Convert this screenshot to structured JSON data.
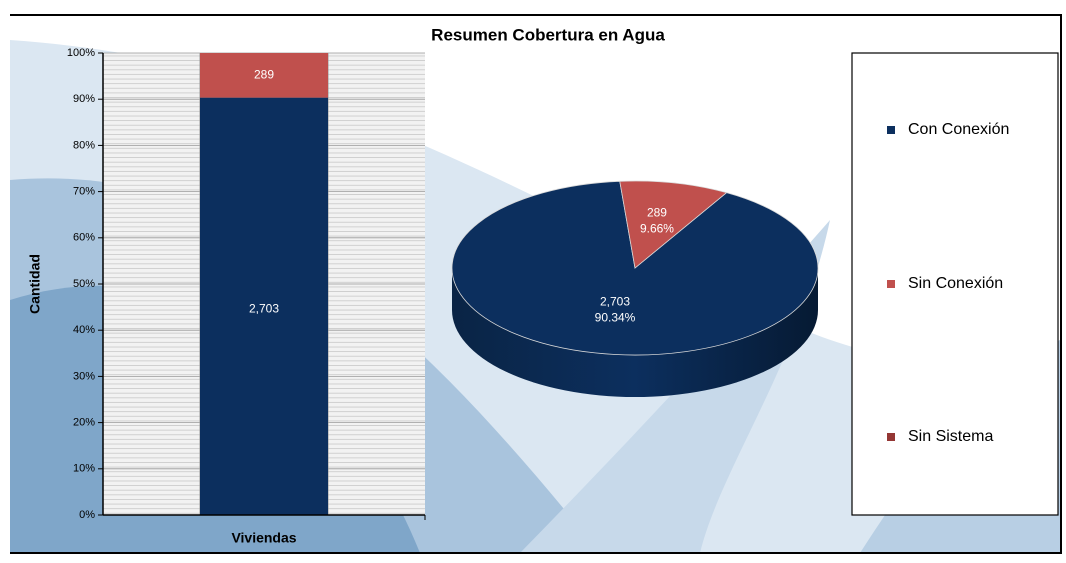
{
  "chart_data": [
    {
      "type": "bar",
      "stacked": "percent",
      "title": "Resumen Cobertura en Agua",
      "y_label": "Cantidad",
      "categories": [
        "Viviendas"
      ],
      "series": [
        {
          "name": "Con Conexión",
          "color": "#0c2f5e",
          "values": [
            2703
          ],
          "value_labels": [
            "2,703"
          ]
        },
        {
          "name": "Sin Conexión",
          "color": "#c0504d",
          "values": [
            289
          ],
          "value_labels": [
            "289"
          ]
        },
        {
          "name": "Sin Sistema",
          "color": "#943634",
          "values": [
            0
          ],
          "value_labels": [
            null
          ]
        }
      ],
      "ylim": [
        0,
        100
      ],
      "yticks": [
        {
          "value": 0,
          "label": "0%"
        },
        {
          "value": 10,
          "label": "10%"
        },
        {
          "value": 20,
          "label": "20%"
        },
        {
          "value": 30,
          "label": "30%"
        },
        {
          "value": 40,
          "label": "40%"
        },
        {
          "value": 50,
          "label": "50%"
        },
        {
          "value": 60,
          "label": "60%"
        },
        {
          "value": 70,
          "label": "70%"
        },
        {
          "value": 80,
          "label": "80%"
        },
        {
          "value": 90,
          "label": "90%"
        },
        {
          "value": 100,
          "label": "100%"
        }
      ],
      "grid": true,
      "legend": "right"
    },
    {
      "type": "pie",
      "values": [
        2703,
        289,
        0
      ],
      "value_labels": [
        "2,703",
        "289",
        null
      ],
      "percent_labels": [
        "90.34%",
        "9.66%",
        null
      ]
    }
  ]
}
